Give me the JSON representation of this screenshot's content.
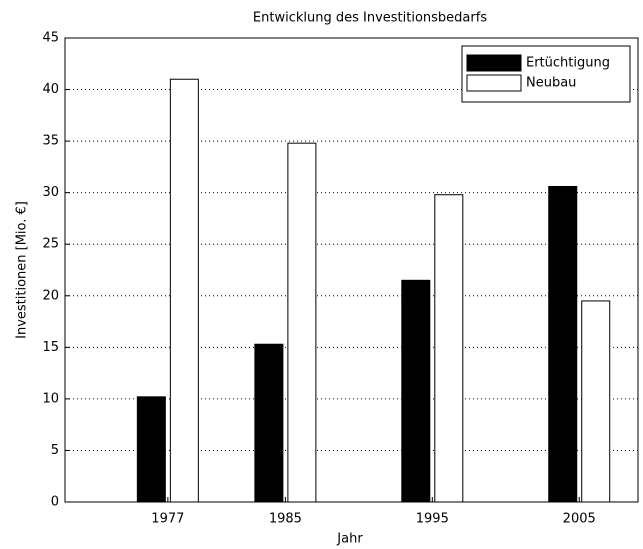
{
  "chart_data": {
    "type": "bar",
    "title": "Entwicklung des Investitionsbedarfs",
    "xlabel": "Jahr",
    "ylabel": "Investitionen [Mio. €]",
    "x": [
      1977,
      1985,
      1995,
      2005
    ],
    "series": [
      {
        "name": "Ertüchtigung",
        "color": "#000000",
        "values": [
          10.2,
          15.3,
          21.5,
          30.6
        ]
      },
      {
        "name": "Neubau",
        "color": "#ffffff",
        "values": [
          41,
          34.8,
          29.8,
          19.5
        ]
      }
    ],
    "xlim": [
      1970,
      2009
    ],
    "xticks": [
      1977,
      1985,
      1995,
      2005
    ],
    "ylim": [
      0,
      45
    ],
    "yticks": [
      0,
      5,
      10,
      15,
      20,
      25,
      30,
      35,
      40,
      45
    ],
    "grid": true,
    "legend": "upper right"
  }
}
